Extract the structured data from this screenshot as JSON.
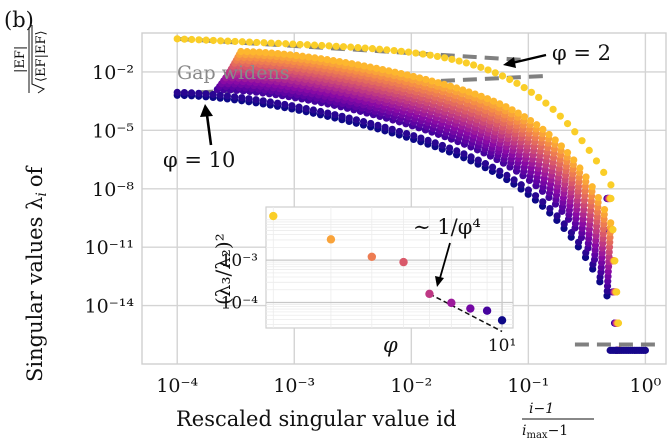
{
  "panel_label": "(b)",
  "chart_data": [
    {
      "type": "scatter",
      "title": "",
      "xlabel": "Rescaled singular value id",
      "xlabel_fraction": {
        "numerator": "i−1",
        "denominator": "i",
        "denominator_sub": "max",
        "denominator_tail": "−1"
      },
      "ylabel": "Singular values λ",
      "ylabel_sub": "i",
      "ylabel_of": "of",
      "ylabel_norm": {
        "numerator": "|EF|",
        "denominator": "⟨EF|EF⟩"
      },
      "x_scale": "log",
      "y_scale": "log",
      "xlim": [
        5e-05,
        1.5
      ],
      "ylim_exponent": [
        -17,
        0
      ],
      "grid": true,
      "x_ticks": [
        {
          "value": 0.0001,
          "label": "10⁻⁴"
        },
        {
          "value": 0.001,
          "label": "10⁻³"
        },
        {
          "value": 0.01,
          "label": "10⁻²"
        },
        {
          "value": 0.1,
          "label": "10⁻¹"
        },
        {
          "value": 1,
          "label": "10⁰"
        }
      ],
      "y_ticks": [
        {
          "exp": -2,
          "label": "10⁻²"
        },
        {
          "exp": -5,
          "label": "10⁻⁵"
        },
        {
          "exp": -8,
          "label": "10⁻⁸"
        },
        {
          "exp": -11,
          "label": "10⁻¹¹"
        },
        {
          "exp": -14,
          "label": "10⁻¹⁴"
        }
      ],
      "colormap": "plasma",
      "phi_range": [
        2,
        10
      ],
      "series_phi": [
        2,
        2.5,
        3,
        3.5,
        4,
        4.5,
        5,
        5.5,
        6,
        6.5,
        7,
        7.5,
        8,
        8.5,
        9,
        9.5,
        10
      ],
      "series_model": {
        "lambda2_exp_at_phi2": -0.8,
        "lambda2_exp_at_phi10": -3.2,
        "cutoff_x": 0.47,
        "floor_exp": -16.3
      },
      "dashed_lines": [
        {
          "label": "upper",
          "x": [
            0.0001,
            0.1
          ],
          "y_exp": [
            -0.3,
            -1.4
          ]
        },
        {
          "label": "lower",
          "x": [
            0.0001,
            0.15
          ],
          "y_exp": [
            -3.1,
            -2.2
          ]
        },
        {
          "label": "floor",
          "x": [
            0.25,
            1.4
          ],
          "y_exp": [
            -16.0,
            -16.0
          ]
        }
      ],
      "annotations": [
        {
          "text": "Gap widens",
          "style": "gray"
        },
        {
          "text": "φ = 2",
          "x": 0.07,
          "y_exp": -1.2
        },
        {
          "text": "φ = 10",
          "x": 0.0002,
          "y_exp": -3.5
        }
      ]
    },
    {
      "type": "scatter",
      "inset": true,
      "xlabel": "φ",
      "ylabel": "(λ₃/λ₂)²",
      "x_scale": "log",
      "y_scale": "log",
      "xlim": [
        1.9,
        10.8
      ],
      "ylim": [
        2.5e-05,
        0.018
      ],
      "x_ticks": [
        {
          "value": 10,
          "label": "10¹"
        }
      ],
      "y_ticks": [
        {
          "value": 0.001,
          "label": "10⁻³"
        },
        {
          "value": 0.0001,
          "label": "10⁻⁴"
        }
      ],
      "x": [
        2,
        3,
        4,
        5,
        6,
        7,
        8,
        9,
        10
      ],
      "y": [
        0.011,
        0.0031,
        0.0012,
        0.0009,
        0.00016,
        9.8e-05,
        7.2e-05,
        6.4e-05,
        3.8e-05
      ],
      "trend": {
        "text": "∼ 1/φ⁴",
        "x": [
          6.0,
          10.0
        ],
        "y": [
          0.00016,
          2.07e-05
        ]
      }
    }
  ]
}
